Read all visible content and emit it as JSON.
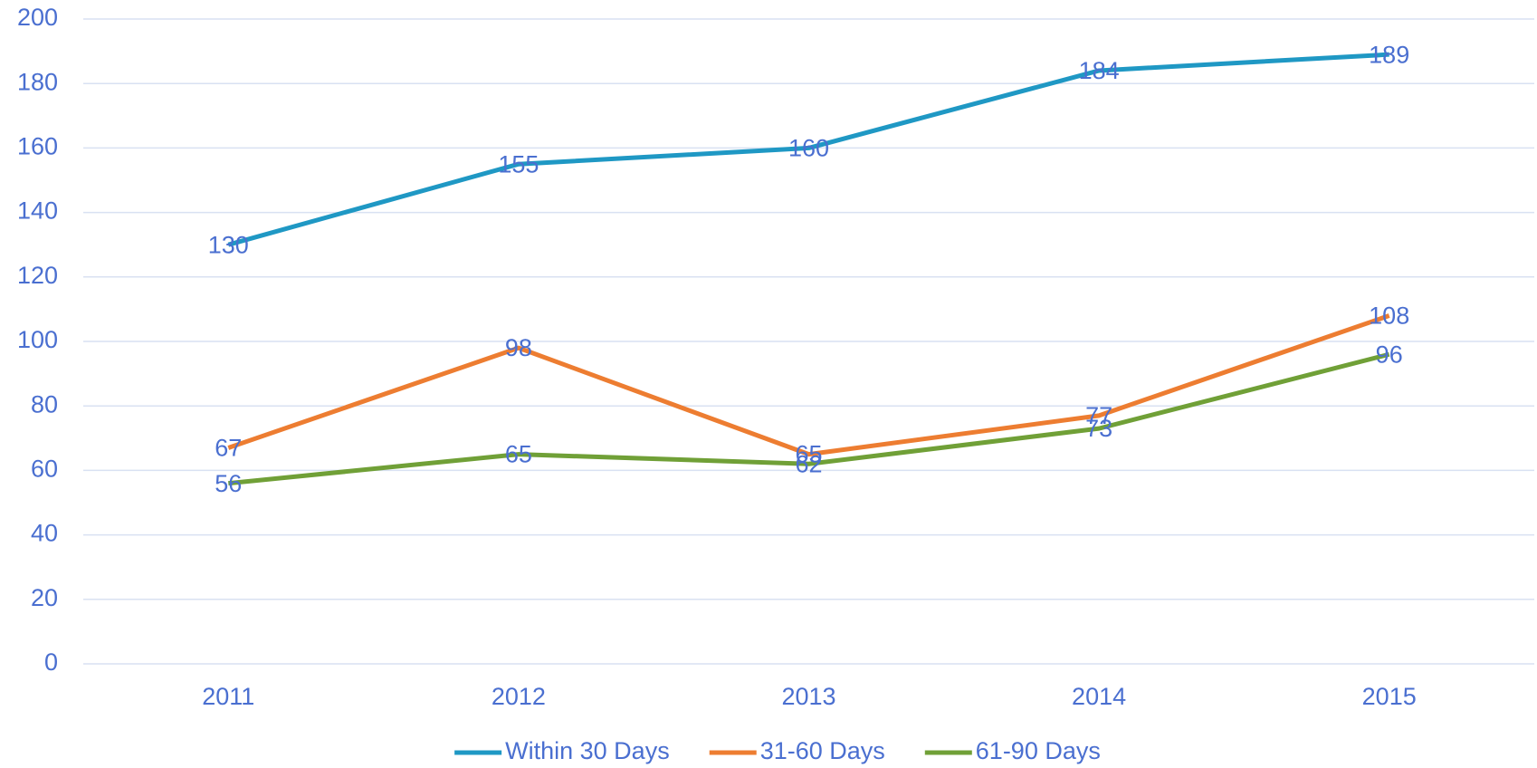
{
  "chart_data": {
    "type": "line",
    "categories": [
      "2011",
      "2012",
      "2013",
      "2014",
      "2015"
    ],
    "series": [
      {
        "name": "Within 30 Days",
        "color": "#1f98c4",
        "values": [
          130,
          155,
          160,
          184,
          189
        ]
      },
      {
        "name": "31-60 Days",
        "color": "#ed7d31",
        "values": [
          67,
          98,
          65,
          77,
          108
        ]
      },
      {
        "name": "61-90 Days",
        "color": "#70a037",
        "values": [
          56,
          65,
          62,
          73,
          96
        ]
      }
    ],
    "ylim": [
      0,
      200
    ],
    "yticks": [
      0,
      20,
      40,
      60,
      80,
      100,
      120,
      140,
      160,
      180,
      200
    ],
    "grid": true,
    "legend": "bottom"
  }
}
